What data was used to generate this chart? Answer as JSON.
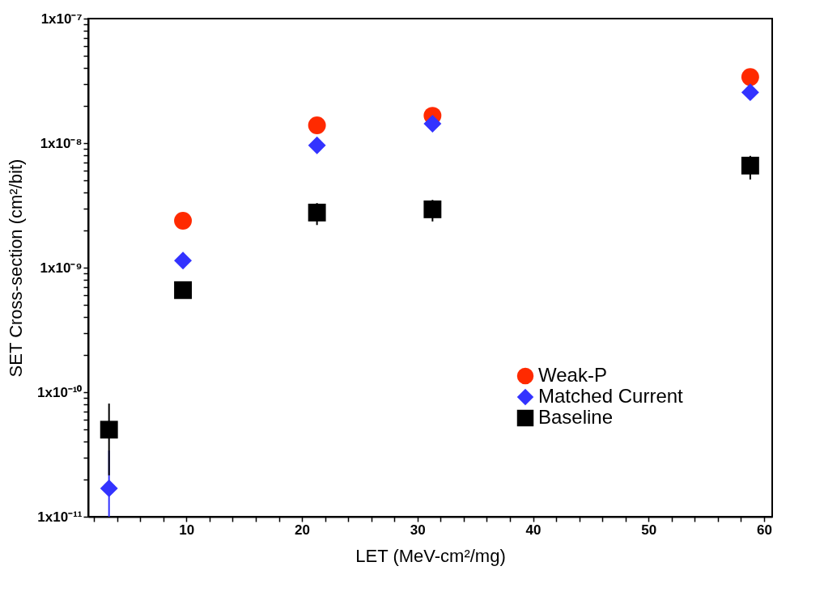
{
  "chart_data": {
    "type": "scatter",
    "xlabel": "LET (MeV-cm²/mg)",
    "ylabel": "SET Cross-section (cm²/bit)",
    "log": "y",
    "grid": false,
    "legend": "bottom right",
    "xlim": [
      1.5,
      60.7
    ],
    "xticks": [
      {
        "value": 2,
        "label": null
      },
      {
        "value": 4,
        "label": null
      },
      {
        "value": 6,
        "label": null
      },
      {
        "value": 8,
        "label": null
      },
      10,
      {
        "value": 12,
        "label": null
      },
      {
        "value": 14,
        "label": null
      },
      {
        "value": 16,
        "label": null
      },
      {
        "value": 18,
        "label": null
      },
      20,
      {
        "value": 22,
        "label": null
      },
      {
        "value": 24,
        "label": null
      },
      {
        "value": 26,
        "label": null
      },
      {
        "value": 28,
        "label": null
      },
      30,
      {
        "value": 32,
        "label": null
      },
      {
        "value": 34,
        "label": null
      },
      {
        "value": 36,
        "label": null
      },
      {
        "value": 38,
        "label": null
      },
      40,
      {
        "value": 42,
        "label": null
      },
      {
        "value": 44,
        "label": null
      },
      {
        "value": 46,
        "label": null
      },
      {
        "value": 48,
        "label": null
      },
      50,
      {
        "value": 52,
        "label": null
      },
      {
        "value": 54,
        "label": null
      },
      {
        "value": 56,
        "label": null
      },
      {
        "value": 58,
        "label": null
      },
      60
    ],
    "ylim": [
      1e-11,
      1e-07
    ],
    "yticks": [
      {
        "value": 1e-11,
        "label": "1x10⁻¹¹"
      },
      {
        "value": 2e-11,
        "label": null
      },
      {
        "value": 3e-11,
        "label": null
      },
      {
        "value": 4e-11,
        "label": null
      },
      {
        "value": 5e-11,
        "label": null
      },
      {
        "value": 6e-11,
        "label": null
      },
      {
        "value": 7e-11,
        "label": null
      },
      {
        "value": 8e-11,
        "label": null
      },
      {
        "value": 9e-11,
        "label": null
      },
      {
        "value": 1e-10,
        "label": "1x10⁻¹⁰"
      },
      {
        "value": 2e-10,
        "label": null
      },
      {
        "value": 3e-10,
        "label": null
      },
      {
        "value": 4e-10,
        "label": null
      },
      {
        "value": 5e-10,
        "label": null
      },
      {
        "value": 6e-10,
        "label": null
      },
      {
        "value": 7e-10,
        "label": null
      },
      {
        "value": 8e-10,
        "label": null
      },
      {
        "value": 9e-10,
        "label": null
      },
      {
        "value": 1e-09,
        "label": "1x10⁻⁹"
      },
      {
        "value": 2e-09,
        "label": null
      },
      {
        "value": 3e-09,
        "label": null
      },
      {
        "value": 4e-09,
        "label": null
      },
      {
        "value": 5e-09,
        "label": null
      },
      {
        "value": 6e-09,
        "label": null
      },
      {
        "value": 7e-09,
        "label": null
      },
      {
        "value": 8e-09,
        "label": null
      },
      {
        "value": 9e-09,
        "label": null
      },
      {
        "value": 1e-08,
        "label": "1x10⁻⁸"
      },
      {
        "value": 2e-08,
        "label": null
      },
      {
        "value": 3e-08,
        "label": null
      },
      {
        "value": 4e-08,
        "label": null
      },
      {
        "value": 5e-08,
        "label": null
      },
      {
        "value": 6e-08,
        "label": null
      },
      {
        "value": 7e-08,
        "label": null
      },
      {
        "value": 8e-08,
        "label": null
      },
      {
        "value": 9e-08,
        "label": null
      },
      {
        "value": 1e-07,
        "label": "1x10⁻⁷"
      }
    ],
    "series": [
      {
        "name": "Weak-P",
        "color": "#ff2a00",
        "marker": "circle",
        "x": [
          9.7,
          21.3,
          31.3,
          58.8
        ],
        "values": [
          2.38e-09,
          1.39e-08,
          1.66e-08,
          3.4e-08
        ]
      },
      {
        "name": "Matched Current",
        "color": "#3333ff",
        "marker": "diamond",
        "x": [
          3.3,
          9.7,
          21.3,
          31.3,
          58.8
        ],
        "values": [
          1.69e-11,
          1.14e-09,
          9.6e-09,
          1.43e-08,
          2.56e-08
        ],
        "errors": [
          [
            1e-11,
            3.4e-11
          ],
          null,
          null,
          null,
          null
        ]
      },
      {
        "name": "Baseline",
        "color": "#000000",
        "marker": "square",
        "x": [
          3.3,
          9.7,
          21.3,
          31.3,
          58.8
        ],
        "values": [
          5e-11,
          6.6e-10,
          2.77e-09,
          2.94e-09,
          6.6e-09
        ],
        "errors": [
          [
            2.15e-11,
            8.1e-11
          ],
          null,
          [
            2.2e-09,
            3.3e-09
          ],
          [
            2.35e-09,
            3.5e-09
          ],
          [
            5.1e-09,
            7.9e-09
          ]
        ]
      }
    ]
  }
}
